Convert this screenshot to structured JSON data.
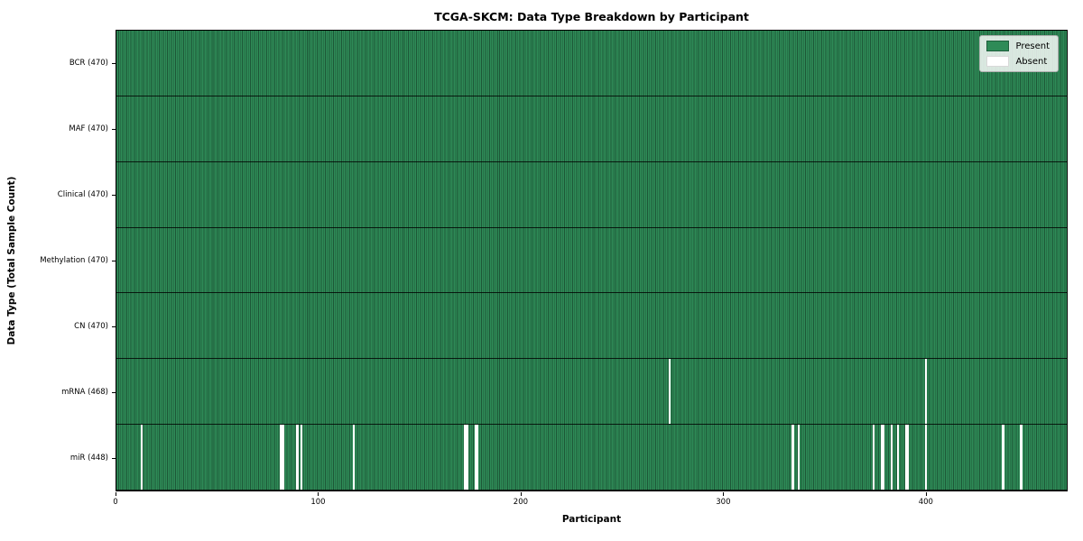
{
  "chart_data": {
    "type": "heatmap",
    "title": "TCGA-SKCM: Data Type Breakdown by Participant",
    "xlabel": "Participant",
    "ylabel": "Data Type (Total Sample Count)",
    "x_ticks": [
      0,
      100,
      200,
      300,
      400
    ],
    "x_max": 470,
    "n_participants": 470,
    "grid": false,
    "legend_position": "upper right",
    "legend": [
      {
        "label": "Present",
        "color": "#2e8b57"
      },
      {
        "label": "Absent",
        "color": "#ffffff"
      }
    ],
    "rows": [
      {
        "label": "BCR (470)",
        "data_type": "BCR",
        "present_count": 470,
        "absent_participants": []
      },
      {
        "label": "MAF (470)",
        "data_type": "MAF",
        "present_count": 470,
        "absent_participants": []
      },
      {
        "label": "Clinical (470)",
        "data_type": "Clinical",
        "present_count": 470,
        "absent_participants": []
      },
      {
        "label": "Methylation (470)",
        "data_type": "Methylation",
        "present_count": 470,
        "absent_participants": []
      },
      {
        "label": "CN (470)",
        "data_type": "CN",
        "present_count": 470,
        "absent_participants": []
      },
      {
        "label": "mRNA (468)",
        "data_type": "mRNA",
        "present_count": 468,
        "absent_participants": [
          273,
          400
        ]
      },
      {
        "label": "miR (448)",
        "data_type": "miR",
        "present_count": 448,
        "absent_participants": [
          12,
          81,
          82,
          89,
          91,
          117,
          172,
          173,
          177,
          178,
          334,
          337,
          374,
          378,
          379,
          383,
          386,
          390,
          391,
          400,
          438,
          447
        ]
      }
    ],
    "colors": {
      "present": "#2e8b57",
      "absent": "#ffffff",
      "cell_separator": "#1d5737",
      "row_boundary": "rgba(0,0,0,0.8)",
      "spine": "#000000"
    }
  }
}
